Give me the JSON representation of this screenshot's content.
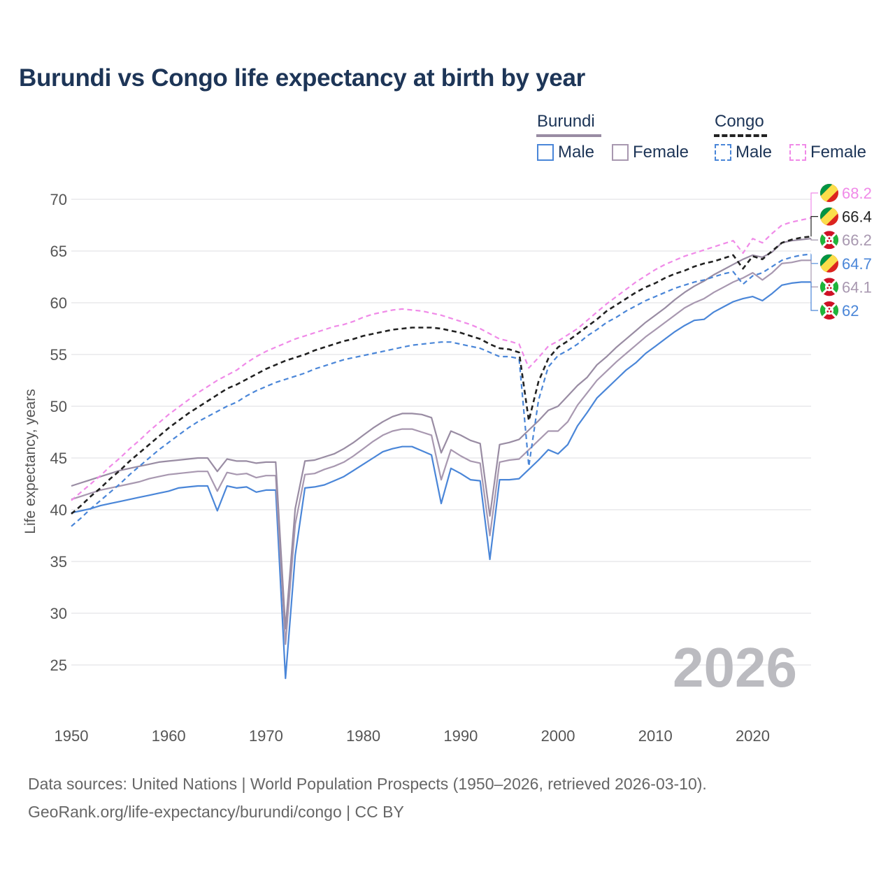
{
  "title": "Burundi vs Congo life expectancy at birth by year",
  "legend": {
    "groups": [
      {
        "name": "Burundi",
        "color": "#998ca3"
      },
      {
        "name": "Congo",
        "color": "#222222"
      }
    ],
    "items": [
      {
        "label": "Male",
        "color": "#4a86d8",
        "dashed": false
      },
      {
        "label": "Female",
        "color": "#a898b0",
        "dashed": false
      },
      {
        "label": "Male",
        "color": "#4a86d8",
        "dashed": true
      },
      {
        "label": "Female",
        "color": "#f08ae8",
        "dashed": true
      }
    ]
  },
  "year_watermark": "2026",
  "source_line1": "Data sources: United Nations | World Population Prospects (1950–2026, retrieved 2026-03-10).",
  "source_line2": "GeoRank.org/life-expectancy/burundi/congo | CC BY",
  "chart_data": {
    "type": "line",
    "title": "Burundi vs Congo life expectancy at birth by year",
    "xlabel": "",
    "ylabel": "Life expectancy, years",
    "xlim": [
      1950,
      2026
    ],
    "ylim": [
      22,
      71
    ],
    "xticks": [
      1950,
      1960,
      1970,
      1980,
      1990,
      2000,
      2010,
      2020
    ],
    "yticks": [
      25,
      30,
      35,
      40,
      45,
      50,
      55,
      60,
      65,
      70
    ],
    "grid": true,
    "x": [
      1950,
      1951,
      1952,
      1953,
      1954,
      1955,
      1956,
      1957,
      1958,
      1959,
      1960,
      1961,
      1962,
      1963,
      1964,
      1965,
      1966,
      1967,
      1968,
      1969,
      1970,
      1971,
      1972,
      1973,
      1974,
      1975,
      1976,
      1977,
      1978,
      1979,
      1980,
      1981,
      1982,
      1983,
      1984,
      1985,
      1986,
      1987,
      1988,
      1989,
      1990,
      1991,
      1992,
      1993,
      1994,
      1995,
      1996,
      1997,
      1998,
      1999,
      2000,
      2001,
      2002,
      2003,
      2004,
      2005,
      2006,
      2007,
      2008,
      2009,
      2010,
      2011,
      2012,
      2013,
      2014,
      2015,
      2016,
      2017,
      2018,
      2019,
      2020,
      2021,
      2022,
      2023,
      2024,
      2025,
      2026
    ],
    "series": [
      {
        "name": "Burundi Male",
        "color": "#4a86d8",
        "dash": false,
        "end_label": "62",
        "flag": "burundi",
        "values": [
          39.7,
          39.9,
          40.1,
          40.4,
          40.6,
          40.8,
          41.0,
          41.2,
          41.4,
          41.6,
          41.8,
          42.1,
          42.2,
          42.3,
          42.3,
          39.9,
          42.3,
          42.1,
          42.2,
          41.7,
          41.9,
          41.9,
          23.7,
          35.6,
          42.1,
          42.2,
          42.4,
          42.8,
          43.2,
          43.8,
          44.4,
          45.0,
          45.6,
          45.9,
          46.1,
          46.1,
          45.7,
          45.3,
          40.6,
          44.0,
          43.5,
          42.9,
          42.8,
          35.2,
          42.9,
          42.9,
          43.0,
          43.9,
          44.8,
          45.8,
          45.4,
          46.3,
          48.1,
          49.4,
          50.8,
          51.7,
          52.6,
          53.5,
          54.2,
          55.1,
          55.8,
          56.5,
          57.2,
          57.8,
          58.3,
          58.4,
          59.1,
          59.6,
          60.1,
          60.4,
          60.6,
          60.2,
          60.9,
          61.7,
          61.9,
          62.0,
          62.0
        ]
      },
      {
        "name": "Burundi Female",
        "color": "#a898b0",
        "dash": false,
        "end_label": "64.1",
        "flag": "burundi",
        "values": [
          41.0,
          41.3,
          41.6,
          41.9,
          42.1,
          42.3,
          42.5,
          42.7,
          43.0,
          43.2,
          43.4,
          43.5,
          43.6,
          43.7,
          43.7,
          41.8,
          43.6,
          43.4,
          43.5,
          43.1,
          43.3,
          43.3,
          27.0,
          38.6,
          43.4,
          43.5,
          43.9,
          44.2,
          44.6,
          45.2,
          45.9,
          46.6,
          47.2,
          47.6,
          47.8,
          47.8,
          47.5,
          47.2,
          42.9,
          45.8,
          45.2,
          44.7,
          44.5,
          37.5,
          44.6,
          44.8,
          44.9,
          45.8,
          46.7,
          47.6,
          47.6,
          48.5,
          50.1,
          51.3,
          52.5,
          53.4,
          54.3,
          55.1,
          55.9,
          56.7,
          57.4,
          58.1,
          58.8,
          59.5,
          60.0,
          60.4,
          61.0,
          61.5,
          62.0,
          62.4,
          62.9,
          62.2,
          62.9,
          63.8,
          63.9,
          64.1,
          64.1
        ]
      },
      {
        "name": "Burundi Both",
        "color": "#998ca3",
        "dash": false,
        "end_label": "66.2",
        "flag": "burundi",
        "values": [
          42.3,
          42.6,
          42.9,
          43.2,
          43.5,
          43.8,
          44.0,
          44.2,
          44.4,
          44.6,
          44.7,
          44.8,
          44.9,
          45.0,
          45.0,
          43.7,
          44.9,
          44.7,
          44.7,
          44.5,
          44.6,
          44.6,
          28.5,
          40.1,
          44.7,
          44.8,
          45.1,
          45.4,
          45.9,
          46.5,
          47.2,
          47.9,
          48.5,
          49.0,
          49.3,
          49.3,
          49.2,
          48.9,
          45.5,
          47.6,
          47.2,
          46.7,
          46.4,
          39.4,
          46.3,
          46.5,
          46.8,
          47.7,
          48.6,
          49.6,
          50.0,
          51.0,
          52.0,
          52.8,
          54.0,
          54.8,
          55.7,
          56.5,
          57.3,
          58.1,
          58.8,
          59.5,
          60.3,
          61.0,
          61.6,
          62.1,
          62.7,
          63.2,
          63.7,
          64.2,
          64.6,
          64.4,
          64.9,
          65.8,
          66.0,
          66.1,
          66.2
        ]
      },
      {
        "name": "Congo Male",
        "color": "#4a86d8",
        "dash": true,
        "end_label": "64.7",
        "flag": "congo",
        "values": [
          38.4,
          39.2,
          40.1,
          40.9,
          41.7,
          42.5,
          43.4,
          44.2,
          45.0,
          45.8,
          46.5,
          47.2,
          47.9,
          48.5,
          49.0,
          49.5,
          50.0,
          50.4,
          51.0,
          51.5,
          51.9,
          52.3,
          52.6,
          52.9,
          53.2,
          53.6,
          53.9,
          54.2,
          54.5,
          54.7,
          54.9,
          55.1,
          55.3,
          55.5,
          55.7,
          55.9,
          56.0,
          56.1,
          56.2,
          56.2,
          56.0,
          55.8,
          55.6,
          55.2,
          54.8,
          54.8,
          54.6,
          44.2,
          50.6,
          53.8,
          54.9,
          55.4,
          56.0,
          56.8,
          57.4,
          58.1,
          58.6,
          59.2,
          59.7,
          60.2,
          60.6,
          61.0,
          61.4,
          61.7,
          62.0,
          62.2,
          62.5,
          62.8,
          63.0,
          61.8,
          62.6,
          62.9,
          63.5,
          64.1,
          64.4,
          64.6,
          64.7
        ]
      },
      {
        "name": "Congo Both",
        "color": "#222222",
        "dash": true,
        "end_label": "66.4",
        "flag": "congo",
        "values": [
          39.6,
          40.4,
          41.3,
          42.1,
          43.0,
          43.8,
          44.7,
          45.5,
          46.3,
          47.1,
          47.9,
          48.6,
          49.3,
          49.9,
          50.5,
          51.1,
          51.7,
          52.1,
          52.6,
          53.1,
          53.6,
          54.0,
          54.4,
          54.7,
          55.0,
          55.4,
          55.7,
          56.0,
          56.3,
          56.5,
          56.8,
          57.0,
          57.2,
          57.4,
          57.5,
          57.6,
          57.6,
          57.6,
          57.5,
          57.3,
          57.1,
          56.8,
          56.5,
          56.0,
          55.6,
          55.5,
          55.2,
          48.6,
          52.4,
          54.6,
          55.7,
          56.3,
          57.0,
          57.7,
          58.4,
          59.2,
          59.8,
          60.4,
          61.0,
          61.5,
          61.9,
          62.4,
          62.8,
          63.1,
          63.5,
          63.8,
          64.0,
          64.3,
          64.6,
          63.3,
          64.5,
          64.2,
          65.0,
          65.8,
          66.1,
          66.3,
          66.4
        ]
      },
      {
        "name": "Congo Female",
        "color": "#f08ae8",
        "dash": true,
        "end_label": "68.2",
        "flag": "congo",
        "values": [
          40.9,
          41.7,
          42.5,
          43.3,
          44.2,
          45.0,
          45.9,
          46.7,
          47.6,
          48.4,
          49.2,
          49.9,
          50.6,
          51.3,
          51.9,
          52.5,
          53.0,
          53.5,
          54.2,
          54.8,
          55.3,
          55.7,
          56.1,
          56.5,
          56.8,
          57.1,
          57.4,
          57.7,
          57.9,
          58.2,
          58.6,
          58.9,
          59.1,
          59.3,
          59.4,
          59.3,
          59.2,
          59.0,
          58.8,
          58.5,
          58.2,
          57.9,
          57.5,
          57.0,
          56.5,
          56.3,
          56.0,
          53.7,
          54.7,
          55.8,
          56.3,
          56.9,
          57.5,
          58.3,
          59.1,
          59.9,
          60.6,
          61.3,
          62.0,
          62.6,
          63.2,
          63.7,
          64.1,
          64.5,
          64.8,
          65.1,
          65.4,
          65.7,
          66.0,
          64.8,
          66.2,
          65.8,
          66.7,
          67.5,
          67.8,
          68.0,
          68.2
        ]
      }
    ]
  }
}
